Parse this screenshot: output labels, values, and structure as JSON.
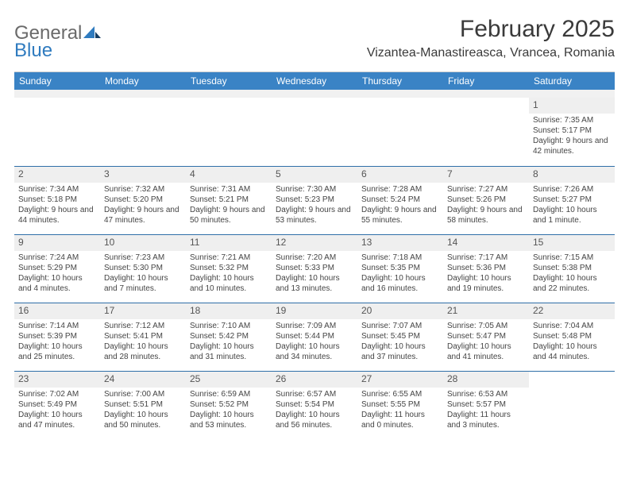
{
  "logo": {
    "word1": "General",
    "word2": "Blue"
  },
  "title": "February 2025",
  "location": "Vizantea-Manastireasca, Vrancea, Romania",
  "header_bg": "#3a83c5",
  "weekdays": [
    "Sunday",
    "Monday",
    "Tuesday",
    "Wednesday",
    "Thursday",
    "Friday",
    "Saturday"
  ],
  "grid": {
    "cols": 7,
    "rows": 5,
    "cell_border_color": "#2f6fa8",
    "daynum_bg": "#efefef",
    "font_size_body": 10,
    "font_size_daynum": 12
  },
  "days": [
    {
      "n": "",
      "sunrise": "",
      "sunset": "",
      "daylight": ""
    },
    {
      "n": "",
      "sunrise": "",
      "sunset": "",
      "daylight": ""
    },
    {
      "n": "",
      "sunrise": "",
      "sunset": "",
      "daylight": ""
    },
    {
      "n": "",
      "sunrise": "",
      "sunset": "",
      "daylight": ""
    },
    {
      "n": "",
      "sunrise": "",
      "sunset": "",
      "daylight": ""
    },
    {
      "n": "",
      "sunrise": "",
      "sunset": "",
      "daylight": ""
    },
    {
      "n": "1",
      "sunrise": "Sunrise: 7:35 AM",
      "sunset": "Sunset: 5:17 PM",
      "daylight": "Daylight: 9 hours and 42 minutes."
    },
    {
      "n": "2",
      "sunrise": "Sunrise: 7:34 AM",
      "sunset": "Sunset: 5:18 PM",
      "daylight": "Daylight: 9 hours and 44 minutes."
    },
    {
      "n": "3",
      "sunrise": "Sunrise: 7:32 AM",
      "sunset": "Sunset: 5:20 PM",
      "daylight": "Daylight: 9 hours and 47 minutes."
    },
    {
      "n": "4",
      "sunrise": "Sunrise: 7:31 AM",
      "sunset": "Sunset: 5:21 PM",
      "daylight": "Daylight: 9 hours and 50 minutes."
    },
    {
      "n": "5",
      "sunrise": "Sunrise: 7:30 AM",
      "sunset": "Sunset: 5:23 PM",
      "daylight": "Daylight: 9 hours and 53 minutes."
    },
    {
      "n": "6",
      "sunrise": "Sunrise: 7:28 AM",
      "sunset": "Sunset: 5:24 PM",
      "daylight": "Daylight: 9 hours and 55 minutes."
    },
    {
      "n": "7",
      "sunrise": "Sunrise: 7:27 AM",
      "sunset": "Sunset: 5:26 PM",
      "daylight": "Daylight: 9 hours and 58 minutes."
    },
    {
      "n": "8",
      "sunrise": "Sunrise: 7:26 AM",
      "sunset": "Sunset: 5:27 PM",
      "daylight": "Daylight: 10 hours and 1 minute."
    },
    {
      "n": "9",
      "sunrise": "Sunrise: 7:24 AM",
      "sunset": "Sunset: 5:29 PM",
      "daylight": "Daylight: 10 hours and 4 minutes."
    },
    {
      "n": "10",
      "sunrise": "Sunrise: 7:23 AM",
      "sunset": "Sunset: 5:30 PM",
      "daylight": "Daylight: 10 hours and 7 minutes."
    },
    {
      "n": "11",
      "sunrise": "Sunrise: 7:21 AM",
      "sunset": "Sunset: 5:32 PM",
      "daylight": "Daylight: 10 hours and 10 minutes."
    },
    {
      "n": "12",
      "sunrise": "Sunrise: 7:20 AM",
      "sunset": "Sunset: 5:33 PM",
      "daylight": "Daylight: 10 hours and 13 minutes."
    },
    {
      "n": "13",
      "sunrise": "Sunrise: 7:18 AM",
      "sunset": "Sunset: 5:35 PM",
      "daylight": "Daylight: 10 hours and 16 minutes."
    },
    {
      "n": "14",
      "sunrise": "Sunrise: 7:17 AM",
      "sunset": "Sunset: 5:36 PM",
      "daylight": "Daylight: 10 hours and 19 minutes."
    },
    {
      "n": "15",
      "sunrise": "Sunrise: 7:15 AM",
      "sunset": "Sunset: 5:38 PM",
      "daylight": "Daylight: 10 hours and 22 minutes."
    },
    {
      "n": "16",
      "sunrise": "Sunrise: 7:14 AM",
      "sunset": "Sunset: 5:39 PM",
      "daylight": "Daylight: 10 hours and 25 minutes."
    },
    {
      "n": "17",
      "sunrise": "Sunrise: 7:12 AM",
      "sunset": "Sunset: 5:41 PM",
      "daylight": "Daylight: 10 hours and 28 minutes."
    },
    {
      "n": "18",
      "sunrise": "Sunrise: 7:10 AM",
      "sunset": "Sunset: 5:42 PM",
      "daylight": "Daylight: 10 hours and 31 minutes."
    },
    {
      "n": "19",
      "sunrise": "Sunrise: 7:09 AM",
      "sunset": "Sunset: 5:44 PM",
      "daylight": "Daylight: 10 hours and 34 minutes."
    },
    {
      "n": "20",
      "sunrise": "Sunrise: 7:07 AM",
      "sunset": "Sunset: 5:45 PM",
      "daylight": "Daylight: 10 hours and 37 minutes."
    },
    {
      "n": "21",
      "sunrise": "Sunrise: 7:05 AM",
      "sunset": "Sunset: 5:47 PM",
      "daylight": "Daylight: 10 hours and 41 minutes."
    },
    {
      "n": "22",
      "sunrise": "Sunrise: 7:04 AM",
      "sunset": "Sunset: 5:48 PM",
      "daylight": "Daylight: 10 hours and 44 minutes."
    },
    {
      "n": "23",
      "sunrise": "Sunrise: 7:02 AM",
      "sunset": "Sunset: 5:49 PM",
      "daylight": "Daylight: 10 hours and 47 minutes."
    },
    {
      "n": "24",
      "sunrise": "Sunrise: 7:00 AM",
      "sunset": "Sunset: 5:51 PM",
      "daylight": "Daylight: 10 hours and 50 minutes."
    },
    {
      "n": "25",
      "sunrise": "Sunrise: 6:59 AM",
      "sunset": "Sunset: 5:52 PM",
      "daylight": "Daylight: 10 hours and 53 minutes."
    },
    {
      "n": "26",
      "sunrise": "Sunrise: 6:57 AM",
      "sunset": "Sunset: 5:54 PM",
      "daylight": "Daylight: 10 hours and 56 minutes."
    },
    {
      "n": "27",
      "sunrise": "Sunrise: 6:55 AM",
      "sunset": "Sunset: 5:55 PM",
      "daylight": "Daylight: 11 hours and 0 minutes."
    },
    {
      "n": "28",
      "sunrise": "Sunrise: 6:53 AM",
      "sunset": "Sunset: 5:57 PM",
      "daylight": "Daylight: 11 hours and 3 minutes."
    },
    {
      "n": "",
      "sunrise": "",
      "sunset": "",
      "daylight": ""
    }
  ]
}
